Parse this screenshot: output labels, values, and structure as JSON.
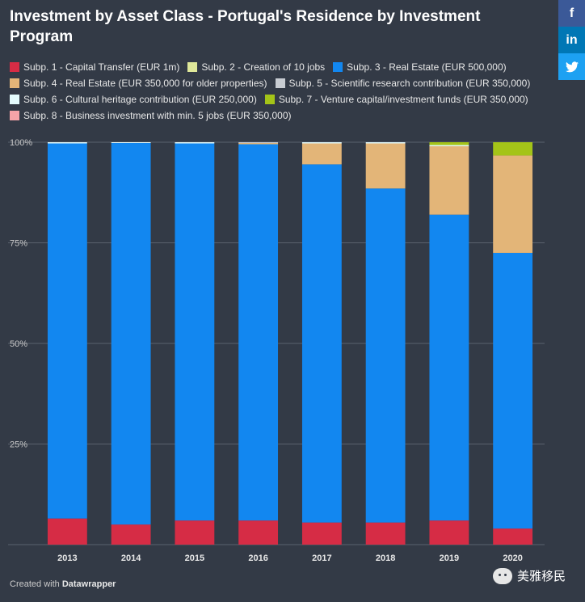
{
  "title": "Investment by Asset Class - Portugal's Residence by Investment Program",
  "share": {
    "facebook_label": "f",
    "linkedin_label": "in",
    "twitter_label": "🐦"
  },
  "footer": {
    "prefix": "Created with",
    "brand": "Datawrapper"
  },
  "watermark": "美雅移民",
  "colors": {
    "background": "#333a46",
    "gridline": "#5a616d",
    "facebook": "#3b5998",
    "linkedin": "#0077b5",
    "twitter": "#1da1f2"
  },
  "chart_data": {
    "type": "bar",
    "stacked": true,
    "percent": true,
    "categories": [
      "2013",
      "2014",
      "2015",
      "2016",
      "2017",
      "2018",
      "2019",
      "2020"
    ],
    "ylim": [
      0,
      100
    ],
    "yticks": [
      0,
      25,
      50,
      75,
      100
    ],
    "ytick_labels": [
      "",
      "25%",
      "50%",
      "75%",
      "100%"
    ],
    "grid": true,
    "legend_position": "top",
    "series": [
      {
        "name": "Subp. 1 - Capital Transfer (EUR 1m)",
        "color": "#d62c45",
        "values": [
          6.5,
          5,
          6,
          6,
          5.5,
          5.5,
          6,
          4
        ]
      },
      {
        "name": "Subp. 2 - Creation of 10 jobs",
        "color": "#dfe89a",
        "values": [
          0,
          0,
          0,
          0,
          0,
          0,
          0,
          0
        ]
      },
      {
        "name": "Subp. 3 - Real Estate (EUR 500,000)",
        "color": "#1287f0",
        "values": [
          93.2,
          94.8,
          93.7,
          93.5,
          89,
          83,
          76,
          68.5
        ]
      },
      {
        "name": "Subp. 4 - Real Estate (EUR 350,000 for older properties)",
        "color": "#e3b578",
        "values": [
          0,
          0,
          0,
          0.3,
          5.2,
          11.2,
          17,
          24.2
        ]
      },
      {
        "name": "Subp. 5 - Scientific research contribution (EUR 350,000)",
        "color": "#c8ccd2",
        "values": [
          0,
          0,
          0,
          0.2,
          0,
          0,
          0,
          0
        ]
      },
      {
        "name": "Subp. 6 - Cultural heritage contribution (EUR 250,000)",
        "color": "#e4fbfd",
        "values": [
          0.3,
          0.2,
          0.3,
          0,
          0.3,
          0.3,
          0.3,
          0
        ]
      },
      {
        "name": "Subp. 7 - Venture capital/investment funds (EUR 350,000)",
        "color": "#a4c418",
        "values": [
          0,
          0,
          0,
          0,
          0,
          0,
          0.7,
          3.3
        ]
      },
      {
        "name": "Subp. 8 - Business investment with min. 5 jobs (EUR 350,000)",
        "color": "#f6a3a8",
        "values": [
          0,
          0,
          0,
          0,
          0,
          0,
          0,
          0
        ]
      }
    ]
  }
}
